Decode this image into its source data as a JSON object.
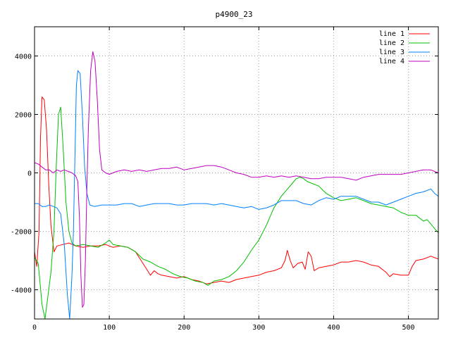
{
  "chart_data": {
    "type": "line",
    "title": "p4900_23",
    "xlabel": "",
    "ylabel": "",
    "xlim": [
      0,
      540
    ],
    "ylim": [
      -5000,
      5000
    ],
    "xticks": [
      0,
      100,
      200,
      300,
      400,
      500
    ],
    "yticks": [
      -4000,
      -2000,
      0,
      2000,
      4000
    ],
    "grid": true,
    "legend_position": "top-right",
    "series": [
      {
        "name": "line 1",
        "color": "#ff0000",
        "points": [
          [
            0,
            -2700
          ],
          [
            3,
            -3200
          ],
          [
            6,
            -2000
          ],
          [
            8,
            1200
          ],
          [
            10,
            2600
          ],
          [
            13,
            2500
          ],
          [
            16,
            1500
          ],
          [
            19,
            -400
          ],
          [
            22,
            -1800
          ],
          [
            26,
            -2700
          ],
          [
            30,
            -2500
          ],
          [
            38,
            -2450
          ],
          [
            46,
            -2400
          ],
          [
            55,
            -2500
          ],
          [
            65,
            -2550
          ],
          [
            75,
            -2500
          ],
          [
            85,
            -2500
          ],
          [
            95,
            -2450
          ],
          [
            105,
            -2550
          ],
          [
            115,
            -2500
          ],
          [
            125,
            -2550
          ],
          [
            135,
            -2700
          ],
          [
            140,
            -2900
          ],
          [
            145,
            -3100
          ],
          [
            150,
            -3300
          ],
          [
            155,
            -3500
          ],
          [
            160,
            -3350
          ],
          [
            165,
            -3450
          ],
          [
            170,
            -3500
          ],
          [
            180,
            -3550
          ],
          [
            190,
            -3600
          ],
          [
            200,
            -3550
          ],
          [
            210,
            -3650
          ],
          [
            220,
            -3700
          ],
          [
            230,
            -3800
          ],
          [
            240,
            -3750
          ],
          [
            250,
            -3700
          ],
          [
            260,
            -3750
          ],
          [
            270,
            -3650
          ],
          [
            280,
            -3600
          ],
          [
            290,
            -3550
          ],
          [
            300,
            -3500
          ],
          [
            310,
            -3400
          ],
          [
            320,
            -3350
          ],
          [
            330,
            -3250
          ],
          [
            335,
            -3000
          ],
          [
            338,
            -2650
          ],
          [
            342,
            -3000
          ],
          [
            346,
            -3250
          ],
          [
            352,
            -3100
          ],
          [
            358,
            -3050
          ],
          [
            362,
            -3300
          ],
          [
            366,
            -2700
          ],
          [
            370,
            -2850
          ],
          [
            374,
            -3350
          ],
          [
            380,
            -3250
          ],
          [
            390,
            -3200
          ],
          [
            400,
            -3150
          ],
          [
            410,
            -3050
          ],
          [
            420,
            -3050
          ],
          [
            430,
            -3000
          ],
          [
            440,
            -3050
          ],
          [
            450,
            -3150
          ],
          [
            460,
            -3200
          ],
          [
            470,
            -3400
          ],
          [
            475,
            -3550
          ],
          [
            480,
            -3450
          ],
          [
            490,
            -3500
          ],
          [
            500,
            -3500
          ],
          [
            505,
            -3200
          ],
          [
            510,
            -3000
          ],
          [
            520,
            -2950
          ],
          [
            530,
            -2850
          ],
          [
            540,
            -2950
          ]
        ]
      },
      {
        "name": "line 2",
        "color": "#00c000",
        "points": [
          [
            0,
            -2900
          ],
          [
            5,
            -3100
          ],
          [
            10,
            -4500
          ],
          [
            14,
            -5000
          ],
          [
            18,
            -4200
          ],
          [
            22,
            -3400
          ],
          [
            26,
            -2000
          ],
          [
            29,
            200
          ],
          [
            32,
            2000
          ],
          [
            35,
            2250
          ],
          [
            38,
            1000
          ],
          [
            42,
            -1000
          ],
          [
            46,
            -2000
          ],
          [
            50,
            -2400
          ],
          [
            55,
            -2500
          ],
          [
            65,
            -2450
          ],
          [
            75,
            -2500
          ],
          [
            85,
            -2550
          ],
          [
            95,
            -2400
          ],
          [
            100,
            -2300
          ],
          [
            105,
            -2450
          ],
          [
            115,
            -2500
          ],
          [
            125,
            -2550
          ],
          [
            135,
            -2700
          ],
          [
            145,
            -2950
          ],
          [
            155,
            -3050
          ],
          [
            165,
            -3200
          ],
          [
            175,
            -3300
          ],
          [
            185,
            -3450
          ],
          [
            195,
            -3550
          ],
          [
            205,
            -3600
          ],
          [
            215,
            -3700
          ],
          [
            225,
            -3750
          ],
          [
            232,
            -3850
          ],
          [
            240,
            -3700
          ],
          [
            250,
            -3650
          ],
          [
            260,
            -3550
          ],
          [
            270,
            -3350
          ],
          [
            280,
            -3050
          ],
          [
            290,
            -2650
          ],
          [
            300,
            -2300
          ],
          [
            310,
            -1800
          ],
          [
            320,
            -1200
          ],
          [
            330,
            -800
          ],
          [
            340,
            -500
          ],
          [
            345,
            -350
          ],
          [
            350,
            -200
          ],
          [
            355,
            -150
          ],
          [
            360,
            -200
          ],
          [
            365,
            -300
          ],
          [
            370,
            -350
          ],
          [
            375,
            -400
          ],
          [
            380,
            -450
          ],
          [
            390,
            -700
          ],
          [
            400,
            -850
          ],
          [
            410,
            -950
          ],
          [
            420,
            -900
          ],
          [
            430,
            -850
          ],
          [
            440,
            -950
          ],
          [
            450,
            -1050
          ],
          [
            460,
            -1100
          ],
          [
            470,
            -1150
          ],
          [
            480,
            -1200
          ],
          [
            490,
            -1350
          ],
          [
            500,
            -1450
          ],
          [
            510,
            -1450
          ],
          [
            515,
            -1550
          ],
          [
            520,
            -1650
          ],
          [
            525,
            -1600
          ],
          [
            530,
            -1750
          ],
          [
            535,
            -1900
          ],
          [
            540,
            -2050
          ]
        ]
      },
      {
        "name": "line 3",
        "color": "#0080ff",
        "points": [
          [
            0,
            -1050
          ],
          [
            5,
            -1050
          ],
          [
            10,
            -1150
          ],
          [
            15,
            -1150
          ],
          [
            20,
            -1100
          ],
          [
            25,
            -1150
          ],
          [
            30,
            -1200
          ],
          [
            35,
            -1400
          ],
          [
            40,
            -2500
          ],
          [
            44,
            -4200
          ],
          [
            47,
            -5000
          ],
          [
            50,
            -3500
          ],
          [
            52,
            -2000
          ],
          [
            54,
            500
          ],
          [
            56,
            3000
          ],
          [
            58,
            3500
          ],
          [
            61,
            3400
          ],
          [
            64,
            2000
          ],
          [
            67,
            200
          ],
          [
            70,
            -700
          ],
          [
            74,
            -1100
          ],
          [
            80,
            -1150
          ],
          [
            90,
            -1100
          ],
          [
            100,
            -1100
          ],
          [
            110,
            -1100
          ],
          [
            120,
            -1050
          ],
          [
            130,
            -1050
          ],
          [
            140,
            -1150
          ],
          [
            150,
            -1100
          ],
          [
            160,
            -1050
          ],
          [
            170,
            -1050
          ],
          [
            180,
            -1050
          ],
          [
            190,
            -1100
          ],
          [
            200,
            -1100
          ],
          [
            210,
            -1050
          ],
          [
            220,
            -1050
          ],
          [
            230,
            -1050
          ],
          [
            240,
            -1100
          ],
          [
            250,
            -1050
          ],
          [
            260,
            -1100
          ],
          [
            270,
            -1150
          ],
          [
            280,
            -1200
          ],
          [
            290,
            -1150
          ],
          [
            300,
            -1250
          ],
          [
            310,
            -1200
          ],
          [
            320,
            -1100
          ],
          [
            330,
            -950
          ],
          [
            340,
            -950
          ],
          [
            350,
            -950
          ],
          [
            360,
            -1050
          ],
          [
            370,
            -1100
          ],
          [
            380,
            -950
          ],
          [
            390,
            -850
          ],
          [
            400,
            -900
          ],
          [
            410,
            -800
          ],
          [
            420,
            -800
          ],
          [
            430,
            -800
          ],
          [
            440,
            -900
          ],
          [
            450,
            -1000
          ],
          [
            460,
            -1000
          ],
          [
            470,
            -1100
          ],
          [
            480,
            -1000
          ],
          [
            490,
            -900
          ],
          [
            500,
            -800
          ],
          [
            510,
            -700
          ],
          [
            520,
            -650
          ],
          [
            530,
            -550
          ],
          [
            535,
            -700
          ],
          [
            540,
            -800
          ]
        ]
      },
      {
        "name": "line 4",
        "color": "#c000c0",
        "points": [
          [
            0,
            350
          ],
          [
            5,
            300
          ],
          [
            10,
            200
          ],
          [
            15,
            100
          ],
          [
            20,
            100
          ],
          [
            25,
            0
          ],
          [
            30,
            100
          ],
          [
            35,
            50
          ],
          [
            40,
            100
          ],
          [
            45,
            50
          ],
          [
            50,
            0
          ],
          [
            55,
            -100
          ],
          [
            58,
            -300
          ],
          [
            60,
            -1500
          ],
          [
            62,
            -3500
          ],
          [
            64,
            -4600
          ],
          [
            66,
            -4500
          ],
          [
            68,
            -3000
          ],
          [
            70,
            -500
          ],
          [
            72,
            1500
          ],
          [
            75,
            3500
          ],
          [
            78,
            4150
          ],
          [
            81,
            3800
          ],
          [
            84,
            2500
          ],
          [
            87,
            800
          ],
          [
            90,
            100
          ],
          [
            95,
            0
          ],
          [
            100,
            -50
          ],
          [
            110,
            50
          ],
          [
            120,
            100
          ],
          [
            130,
            50
          ],
          [
            140,
            100
          ],
          [
            150,
            50
          ],
          [
            160,
            100
          ],
          [
            170,
            150
          ],
          [
            180,
            150
          ],
          [
            190,
            200
          ],
          [
            200,
            100
          ],
          [
            210,
            150
          ],
          [
            220,
            200
          ],
          [
            230,
            250
          ],
          [
            240,
            250
          ],
          [
            250,
            200
          ],
          [
            260,
            100
          ],
          [
            270,
            0
          ],
          [
            280,
            -50
          ],
          [
            290,
            -150
          ],
          [
            300,
            -150
          ],
          [
            310,
            -100
          ],
          [
            320,
            -150
          ],
          [
            330,
            -100
          ],
          [
            340,
            -150
          ],
          [
            350,
            -100
          ],
          [
            360,
            -150
          ],
          [
            370,
            -200
          ],
          [
            380,
            -200
          ],
          [
            390,
            -150
          ],
          [
            400,
            -150
          ],
          [
            410,
            -150
          ],
          [
            420,
            -200
          ],
          [
            430,
            -250
          ],
          [
            440,
            -150
          ],
          [
            450,
            -100
          ],
          [
            460,
            -50
          ],
          [
            470,
            -50
          ],
          [
            480,
            -50
          ],
          [
            490,
            -50
          ],
          [
            500,
            0
          ],
          [
            510,
            50
          ],
          [
            520,
            100
          ],
          [
            530,
            100
          ],
          [
            535,
            50
          ],
          [
            540,
            0
          ]
        ]
      }
    ]
  }
}
